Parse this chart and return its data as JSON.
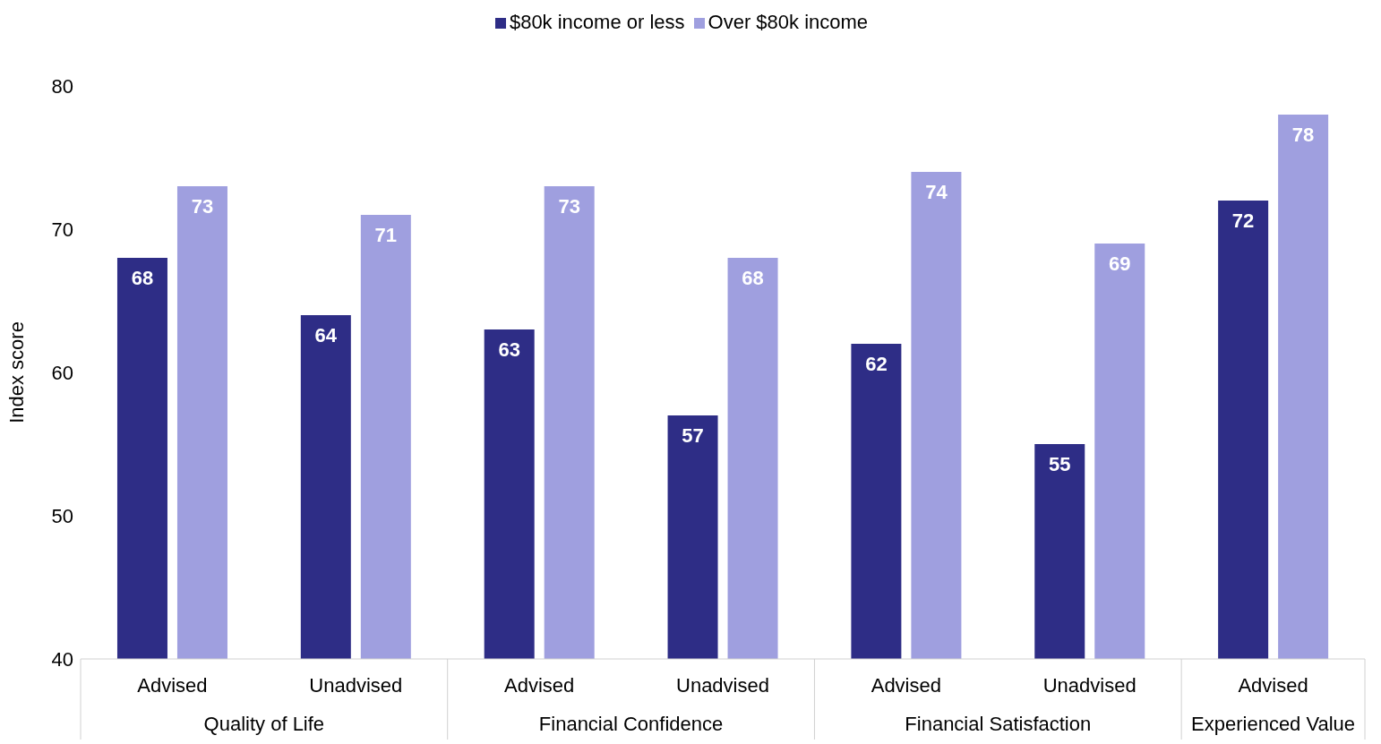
{
  "chart_data": {
    "type": "bar",
    "ylabel": "Index score",
    "categories": [
      "Advised",
      "Unadvised",
      "Advised",
      "Unadvised",
      "Advised",
      "Unadvised",
      "Advised"
    ],
    "annotations": [
      "Quality of Life",
      "Financial Confidence",
      "Financial Satisfaction",
      "Experienced Value"
    ],
    "series": [
      {
        "name": "$80k income or less",
        "color": "#2e2d86",
        "values": [
          68,
          64,
          63,
          57,
          62,
          55,
          72
        ]
      },
      {
        "name": "Over $80k income",
        "color": "#9f9fdf",
        "values": [
          73,
          71,
          73,
          68,
          74,
          69,
          78
        ]
      }
    ],
    "ylim": [
      40,
      80
    ],
    "yticks": [
      40,
      50,
      60,
      70,
      80
    ],
    "grid": false,
    "legend": "top",
    "data_labels": true
  }
}
